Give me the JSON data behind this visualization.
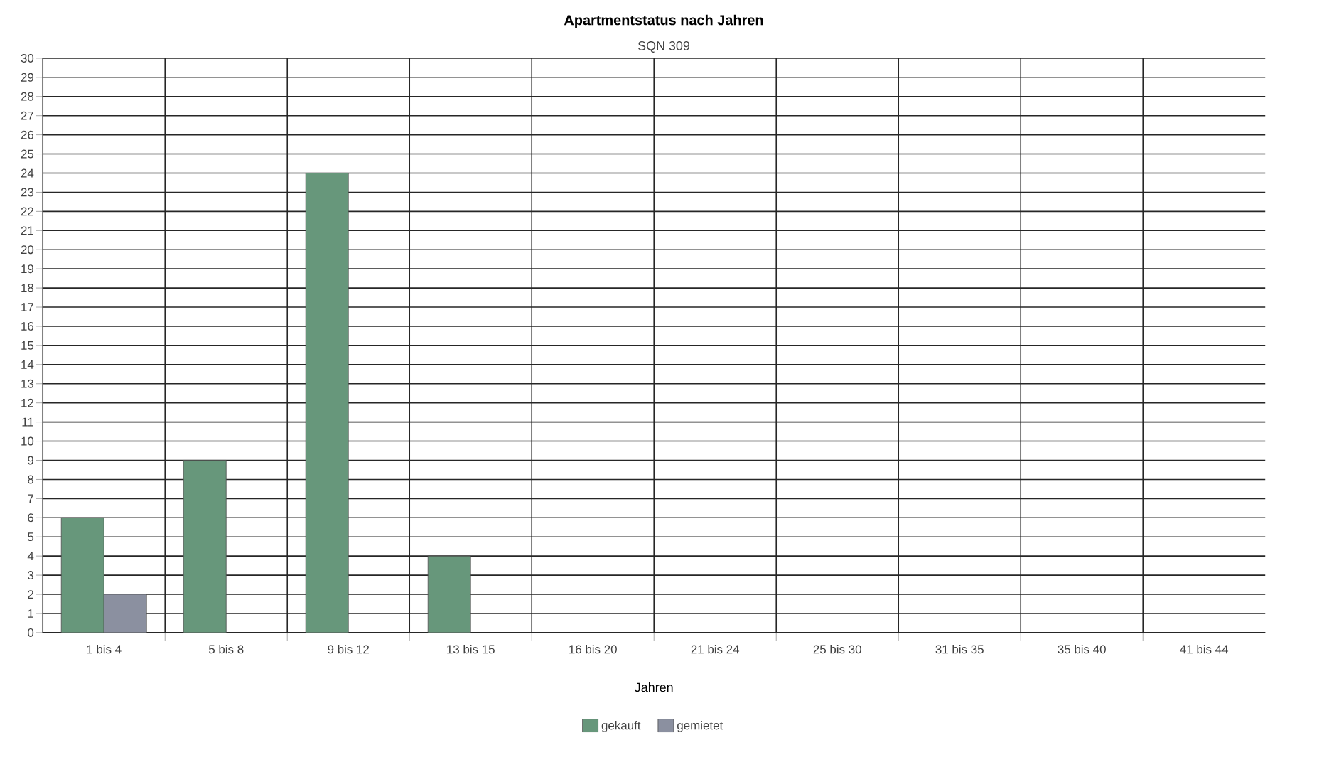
{
  "chart_data": {
    "type": "bar",
    "title": "Apartmentstatus nach Jahren",
    "subtitle": "SQN 309",
    "xlabel": "Jahren",
    "categories": [
      "1 bis 4",
      "5 bis 8",
      "9 bis 12",
      "13 bis 15",
      "16 bis 20",
      "21 bis 24",
      "25 bis 30",
      "31 bis 35",
      "35 bis 40",
      "41 bis 44"
    ],
    "series": [
      {
        "name": "gekauft",
        "color": "#67977b",
        "values": [
          6,
          9,
          24,
          4,
          null,
          null,
          null,
          null,
          null,
          null
        ]
      },
      {
        "name": "gemietet",
        "color": "#8b90a0",
        "values": [
          2,
          null,
          null,
          null,
          null,
          null,
          null,
          null,
          null,
          null
        ]
      }
    ],
    "ylim": [
      0,
      30
    ],
    "yticks": [
      0,
      1,
      2,
      3,
      4,
      5,
      6,
      7,
      8,
      9,
      10,
      11,
      12,
      13,
      14,
      15,
      16,
      17,
      18,
      19,
      20,
      21,
      22,
      23,
      24,
      25,
      26,
      27,
      28,
      29,
      30
    ],
    "grid": true,
    "legend": "bottom"
  }
}
